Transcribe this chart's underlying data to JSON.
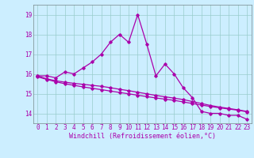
{
  "xlabel": "Windchill (Refroidissement éolien,°C)",
  "background_color": "#cceeff",
  "line_color": "#aa00aa",
  "grid_color": "#99cccc",
  "x_values": [
    0,
    1,
    2,
    3,
    4,
    5,
    6,
    7,
    8,
    9,
    10,
    11,
    12,
    13,
    14,
    15,
    16,
    17,
    18,
    19,
    20,
    21,
    22,
    23
  ],
  "line1_y": [
    15.9,
    15.9,
    15.8,
    16.1,
    16.0,
    16.3,
    16.6,
    17.0,
    17.6,
    18.0,
    17.6,
    19.0,
    17.5,
    15.9,
    16.5,
    16.0,
    15.3,
    14.8,
    14.1,
    14.0,
    14.0,
    13.9,
    13.9,
    13.7
  ],
  "line2_y": [
    15.9,
    15.75,
    15.65,
    15.58,
    15.52,
    15.47,
    15.42,
    15.37,
    15.3,
    15.22,
    15.15,
    15.07,
    14.99,
    14.91,
    14.84,
    14.77,
    14.7,
    14.6,
    14.5,
    14.4,
    14.32,
    14.25,
    14.18,
    14.1
  ],
  "line3_y": [
    15.85,
    15.72,
    15.6,
    15.5,
    15.42,
    15.34,
    15.27,
    15.2,
    15.13,
    15.06,
    14.99,
    14.92,
    14.85,
    14.78,
    14.72,
    14.66,
    14.58,
    14.5,
    14.42,
    14.35,
    14.28,
    14.22,
    14.16,
    14.08
  ],
  "ylim": [
    13.5,
    19.5
  ],
  "yticks": [
    14,
    15,
    16,
    17,
    18,
    19
  ],
  "xticks": [
    0,
    1,
    2,
    3,
    4,
    5,
    6,
    7,
    8,
    9,
    10,
    11,
    12,
    13,
    14,
    15,
    16,
    17,
    18,
    19,
    20,
    21,
    22,
    23
  ],
  "tick_fontsize": 5.5,
  "xlabel_fontsize": 6.0,
  "ylabel_fontsize": 6.0,
  "marker": "D",
  "markersize": 1.8,
  "linewidth": 0.9
}
